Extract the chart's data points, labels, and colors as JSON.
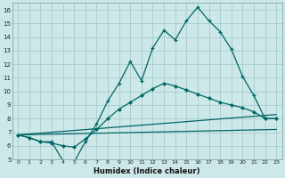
{
  "xlabel": "Humidex (Indice chaleur)",
  "bg_color": "#cce8e8",
  "grid_color": "#aacccc",
  "line_color": "#006666",
  "xlim": [
    -0.5,
    23.5
  ],
  "ylim": [
    5,
    16.5
  ],
  "yticks": [
    5,
    6,
    7,
    8,
    9,
    10,
    11,
    12,
    13,
    14,
    15,
    16
  ],
  "xticks": [
    0,
    1,
    2,
    3,
    4,
    5,
    6,
    7,
    8,
    9,
    10,
    11,
    12,
    13,
    14,
    15,
    16,
    17,
    18,
    19,
    20,
    21,
    22,
    23
  ],
  "line1_x": [
    0,
    1,
    2,
    3,
    4,
    5,
    6,
    7,
    8,
    9,
    10,
    11,
    12,
    13,
    14,
    15,
    16,
    17,
    18,
    19,
    20,
    21,
    22,
    23
  ],
  "line1_y": [
    6.8,
    6.6,
    6.3,
    6.3,
    4.9,
    4.8,
    6.3,
    7.6,
    9.3,
    10.6,
    12.2,
    10.8,
    13.2,
    14.5,
    13.8,
    15.2,
    16.2,
    15.2,
    14.4,
    13.1,
    11.1,
    9.7,
    8.0,
    8.0
  ],
  "line2_x": [
    0,
    1,
    2,
    3,
    4,
    5,
    6,
    7,
    8,
    9,
    10,
    11,
    12,
    13,
    14,
    15,
    16,
    17,
    18,
    19,
    20,
    21,
    22,
    23
  ],
  "line2_y": [
    6.8,
    6.6,
    6.3,
    6.2,
    6.0,
    5.9,
    6.5,
    7.2,
    8.0,
    8.7,
    9.2,
    9.7,
    10.2,
    10.6,
    10.4,
    10.1,
    9.8,
    9.5,
    9.2,
    9.0,
    8.8,
    8.5,
    8.0,
    8.0
  ],
  "line3_x": [
    0,
    23
  ],
  "line3_y": [
    6.8,
    8.3
  ],
  "line4_x": [
    0,
    23
  ],
  "line4_y": [
    6.8,
    7.2
  ]
}
